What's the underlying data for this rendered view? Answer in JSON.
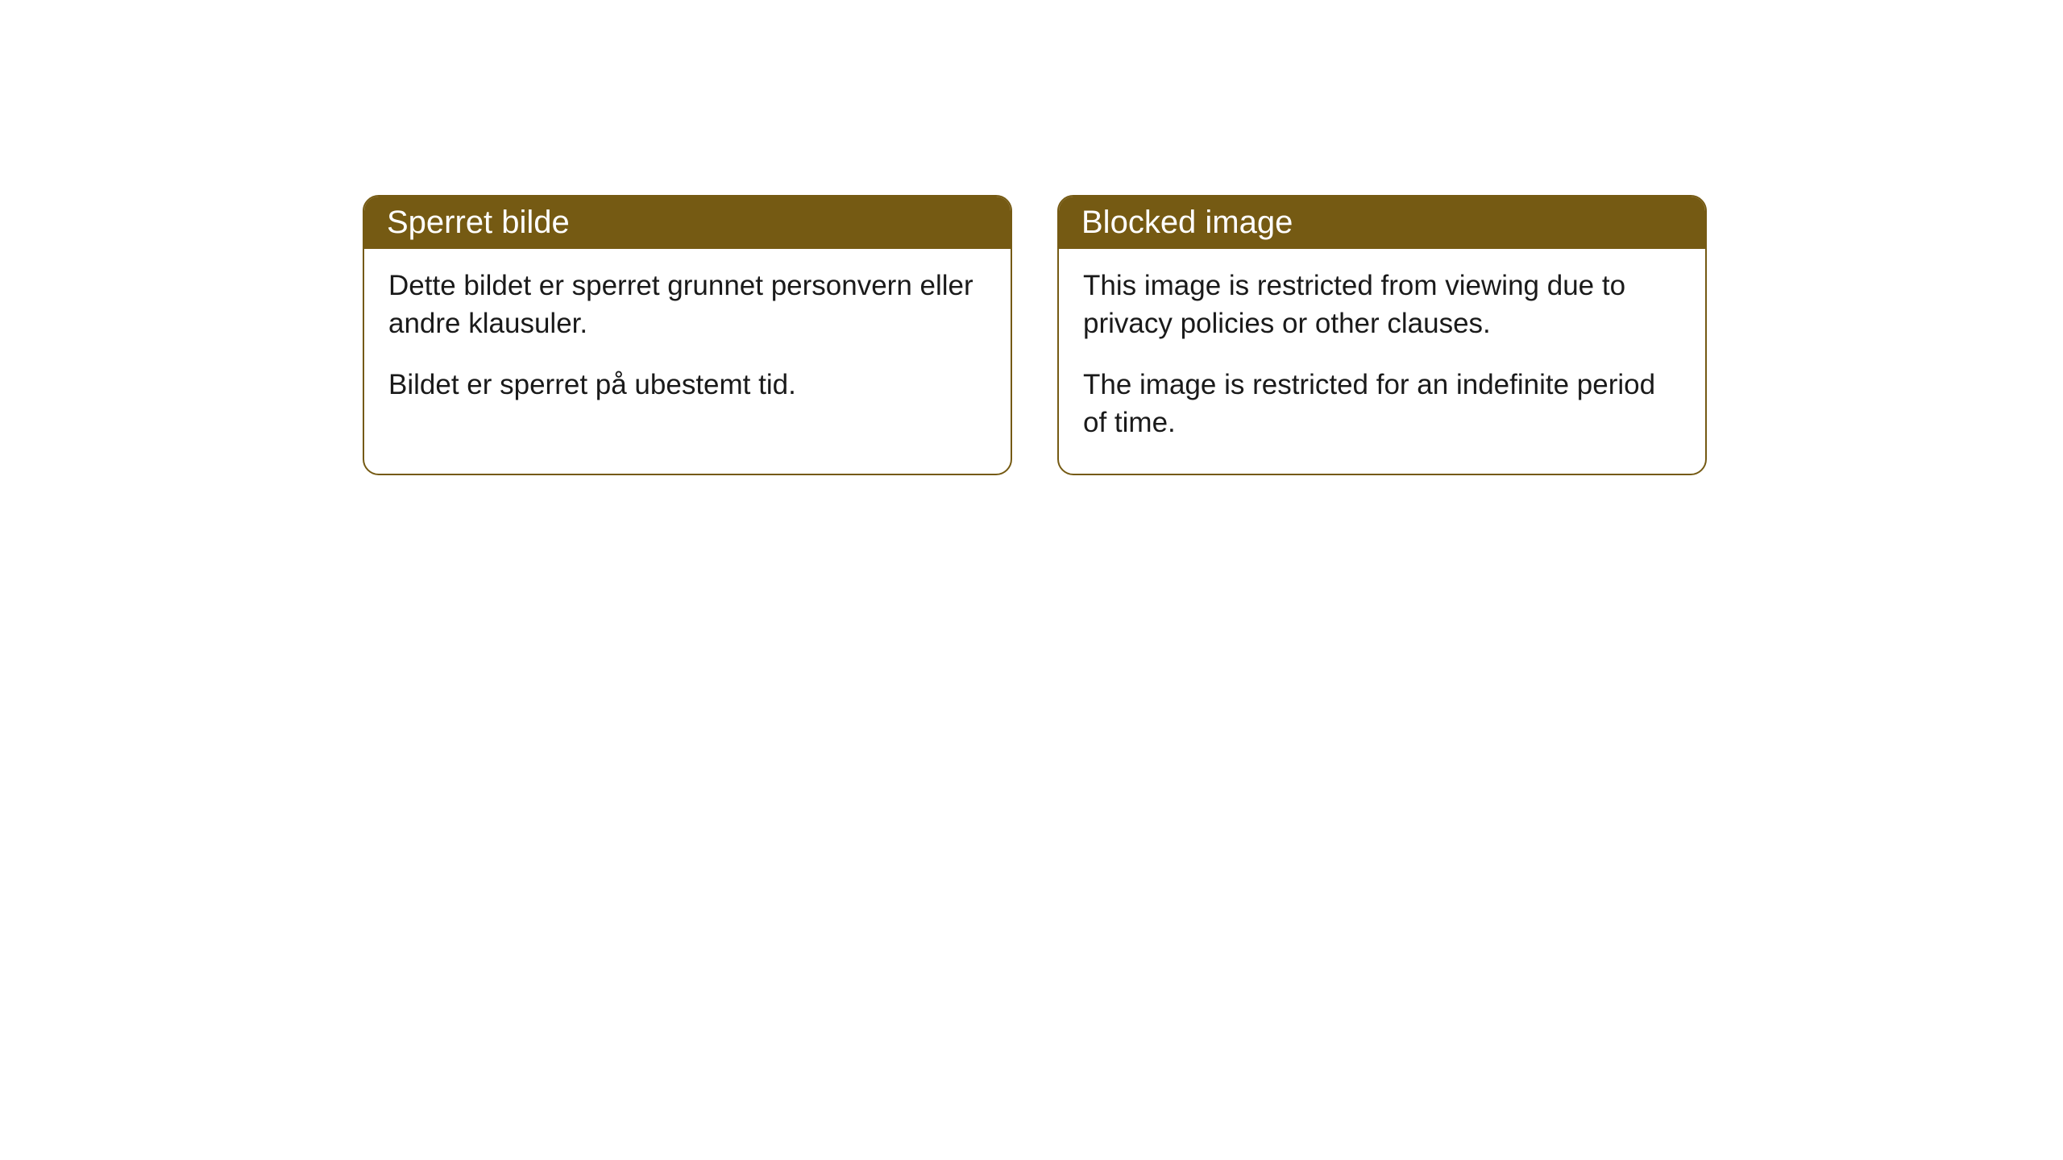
{
  "cards": [
    {
      "title": "Sperret bilde",
      "paragraph1": "Dette bildet er sperret grunnet personvern eller andre klausuler.",
      "paragraph2": "Bildet er sperret på ubestemt tid."
    },
    {
      "title": "Blocked image",
      "paragraph1": "This image is restricted from viewing due to privacy policies or other clauses.",
      "paragraph2": "The image is restricted for an indefinite period of time."
    }
  ],
  "styling": {
    "header_background": "#755a13",
    "header_text_color": "#ffffff",
    "border_color": "#755a13",
    "body_text_color": "#1a1a1a",
    "page_background": "#ffffff",
    "border_radius": 20,
    "title_fontsize": 40,
    "body_fontsize": 35
  }
}
